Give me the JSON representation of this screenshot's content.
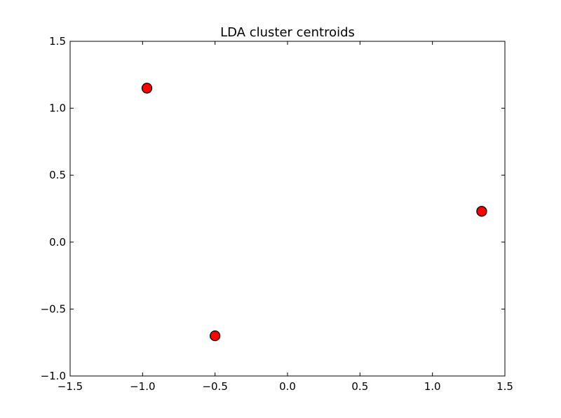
{
  "chart_data": {
    "type": "scatter",
    "title": "LDA cluster centroids",
    "xlabel": "",
    "ylabel": "",
    "xlim": [
      -1.5,
      1.5
    ],
    "ylim": [
      -1.0,
      1.5
    ],
    "x_ticks": [
      -1.5,
      -1.0,
      -0.5,
      0.0,
      0.5,
      1.0,
      1.5
    ],
    "x_tick_labels": [
      "−1.5",
      "−1.0",
      "−0.5",
      "0.0",
      "0.5",
      "1.0",
      "1.5"
    ],
    "y_ticks": [
      -1.0,
      -0.5,
      0.0,
      0.5,
      1.0,
      1.5
    ],
    "y_tick_labels": [
      "−1.0",
      "−0.5",
      "0.0",
      "0.5",
      "1.0",
      "1.5"
    ],
    "grid": false,
    "series": [
      {
        "marker": "circle",
        "color": "#ff0000",
        "edge_color": "#000000",
        "points": [
          {
            "x": -0.97,
            "y": 1.15
          },
          {
            "x": -0.5,
            "y": -0.7
          },
          {
            "x": 1.34,
            "y": 0.23
          }
        ]
      }
    ]
  }
}
